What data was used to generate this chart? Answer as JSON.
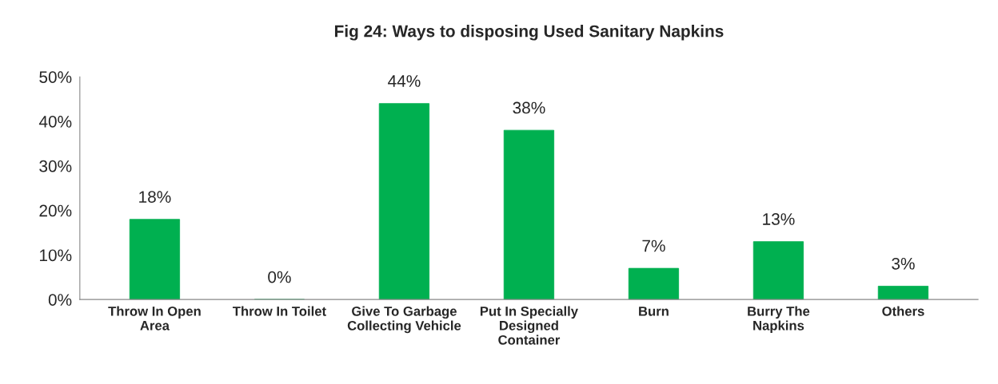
{
  "chart_data": {
    "type": "bar",
    "title": "Fig 24: Ways to disposing Used Sanitary Napkins",
    "categories": [
      "Throw In Open\nArea",
      "Throw In Toilet",
      "Give To Garbage\nCollecting Vehicle",
      "Put In Specially\nDesigned\nContainer",
      "Burn",
      "Burry The\nNapkins",
      "Others"
    ],
    "values": [
      18,
      0,
      44,
      38,
      7,
      13,
      3
    ],
    "value_labels": [
      "18%",
      "0%",
      "44%",
      "38%",
      "7%",
      "13%",
      "3%"
    ],
    "color": "#00b050",
    "ylim": [
      0,
      50
    ],
    "yticks": [
      {
        "value": 0,
        "label": "0%"
      },
      {
        "value": 10,
        "label": "10%"
      },
      {
        "value": 20,
        "label": "20%"
      },
      {
        "value": 30,
        "label": "30%"
      },
      {
        "value": 40,
        "label": "40%"
      },
      {
        "value": 50,
        "label": "50%"
      }
    ],
    "grid": false,
    "legend": false
  }
}
